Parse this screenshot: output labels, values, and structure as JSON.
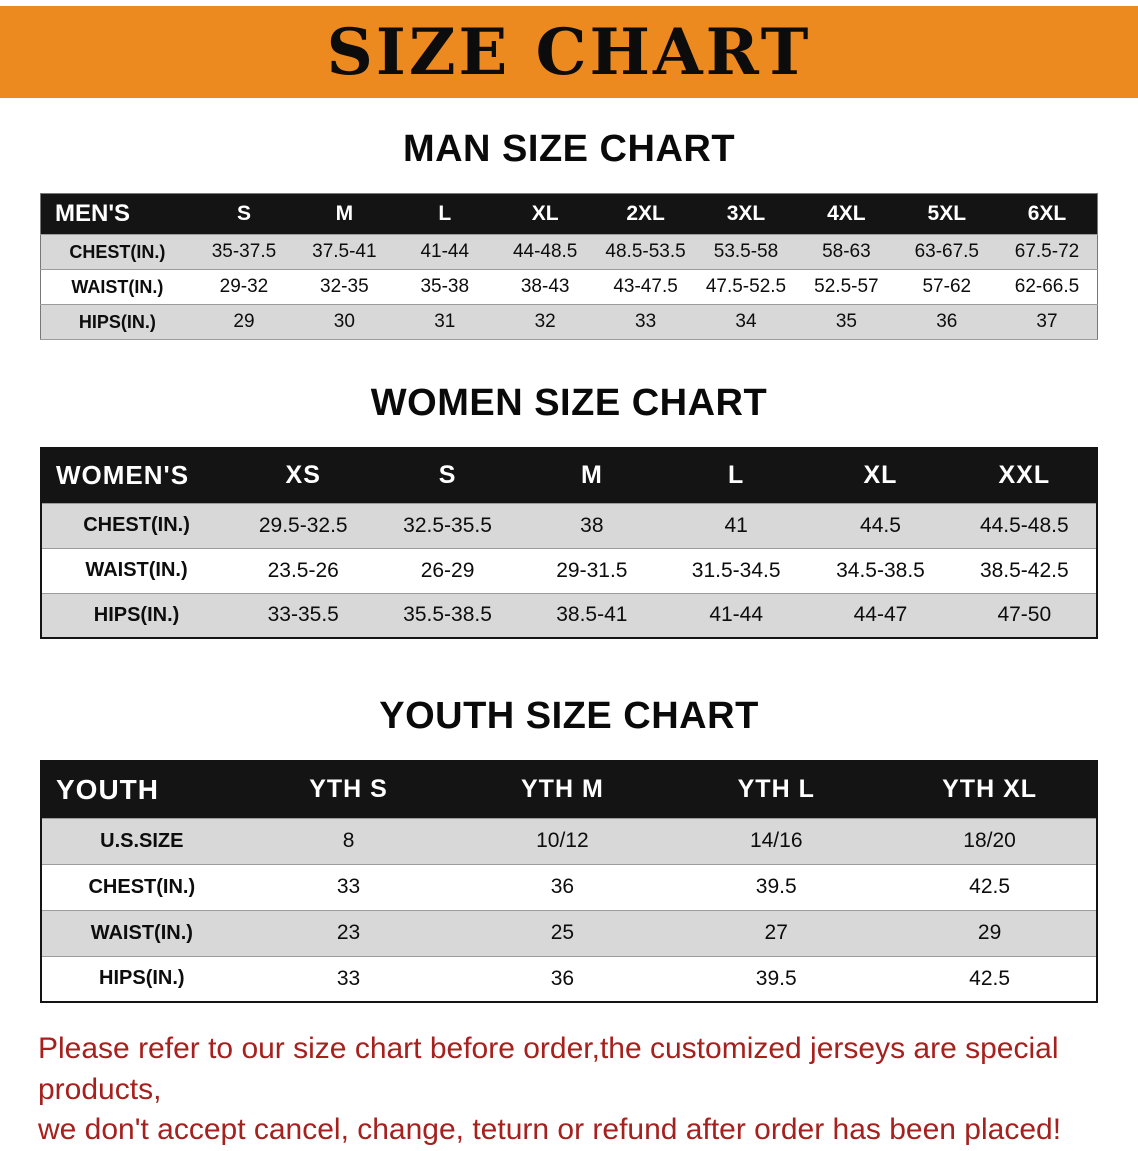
{
  "banner": {
    "title": "SIZE CHART"
  },
  "colors": {
    "banner_bg": "#ed8a1f",
    "header_bg": "#141414",
    "stripe": "#d8d8d8",
    "red": "#a6201e"
  },
  "sections": [
    {
      "heading": "MAN SIZE CHART",
      "table": {
        "header": [
          "MEN'S",
          "S",
          "M",
          "L",
          "XL",
          "2XL",
          "3XL",
          "4XL",
          "5XL",
          "6XL"
        ],
        "rows": [
          [
            "CHEST(IN.)",
            "35-37.5",
            "37.5-41",
            "41-44",
            "44-48.5",
            "48.5-53.5",
            "53.5-58",
            "58-63",
            "63-67.5",
            "67.5-72"
          ],
          [
            "WAIST(IN.)",
            "29-32",
            "32-35",
            "35-38",
            "38-43",
            "43-47.5",
            "47.5-52.5",
            "52.5-57",
            "57-62",
            "62-66.5"
          ],
          [
            "HIPS(IN.)",
            "29",
            "30",
            "31",
            "32",
            "33",
            "34",
            "35",
            "36",
            "37"
          ]
        ]
      }
    },
    {
      "heading": "WOMEN SIZE CHART",
      "table": {
        "header": [
          "WOMEN'S",
          "XS",
          "S",
          "M",
          "L",
          "XL",
          "XXL"
        ],
        "rows": [
          [
            "CHEST(IN.)",
            "29.5-32.5",
            "32.5-35.5",
            "38",
            "41",
            "44.5",
            "44.5-48.5"
          ],
          [
            "WAIST(IN.)",
            "23.5-26",
            "26-29",
            "29-31.5",
            "31.5-34.5",
            "34.5-38.5",
            "38.5-42.5"
          ],
          [
            "HIPS(IN.)",
            "33-35.5",
            "35.5-38.5",
            "38.5-41",
            "41-44",
            "44-47",
            "47-50"
          ]
        ]
      }
    },
    {
      "heading": "YOUTH SIZE CHART",
      "table": {
        "header": [
          "YOUTH",
          "YTH S",
          "YTH M",
          "YTH L",
          "YTH XL"
        ],
        "rows": [
          [
            "U.S.SIZE",
            "8",
            "10/12",
            "14/16",
            "18/20"
          ],
          [
            "CHEST(IN.)",
            "33",
            "36",
            "39.5",
            "42.5"
          ],
          [
            "WAIST(IN.)",
            "23",
            "25",
            "27",
            "29"
          ],
          [
            "HIPS(IN.)",
            "33",
            "36",
            "39.5",
            "42.5"
          ]
        ]
      }
    }
  ],
  "disclaimer": {
    "line1": "Please refer to our size chart before order,the customized jerseys are special products,",
    "line2": "we don't accept cancel, change, teturn or refund after order has been placed!"
  }
}
